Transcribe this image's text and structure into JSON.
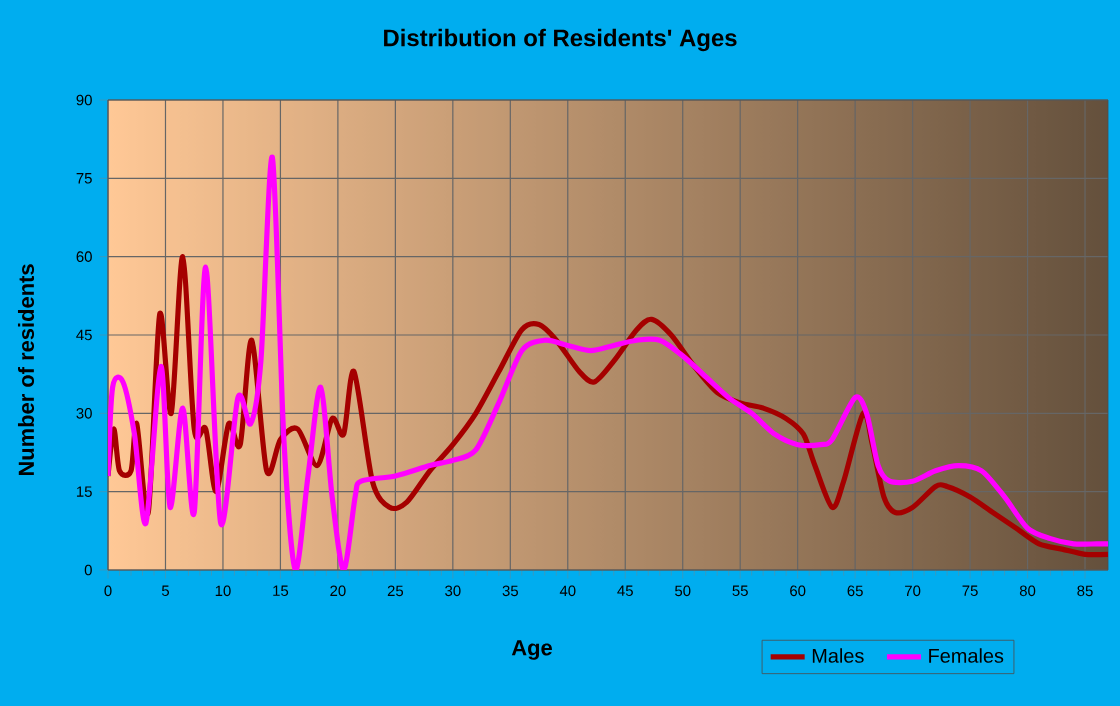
{
  "chart_data": {
    "type": "line",
    "title": "Distribution of Residents' Ages",
    "xlabel": "Age",
    "ylabel": "Number of residents",
    "xlim": [
      0,
      87
    ],
    "ylim": [
      0,
      90
    ],
    "xticks": [
      0,
      5,
      10,
      15,
      20,
      25,
      30,
      35,
      40,
      45,
      50,
      55,
      60,
      65,
      70,
      75,
      80,
      85
    ],
    "yticks": [
      0,
      15,
      30,
      45,
      60,
      75,
      90
    ],
    "grid": true,
    "legend": "bottom right",
    "marker": "none",
    "line_style": "solid",
    "series": [
      {
        "name": "Males",
        "color": "#a50000",
        "x": [
          0,
          0.5,
          1,
          2,
          2.5,
          3.5,
          4.5,
          5.5,
          6.5,
          7.5,
          8.5,
          9.4,
          10.5,
          11.5,
          12.5,
          13.8,
          15,
          16.5,
          18.2,
          19.5,
          20.5,
          21.4,
          23,
          24.5,
          26,
          28,
          30,
          32,
          34,
          36,
          37.5,
          39,
          41,
          42.3,
          44,
          46,
          47.3,
          49,
          51,
          53,
          55,
          57,
          59,
          60.5,
          61.5,
          63,
          64,
          65.7,
          66.5,
          67.5,
          68.5,
          70,
          72,
          73,
          75,
          77,
          79,
          81,
          83,
          85,
          87
        ],
        "values": [
          18,
          27,
          19,
          19,
          28,
          11,
          49,
          30,
          60,
          27,
          27,
          15,
          28,
          24,
          44,
          19,
          25,
          27,
          20,
          29,
          26,
          38,
          17,
          12,
          13,
          19,
          24,
          30,
          38,
          46,
          47,
          44,
          38,
          36,
          40,
          46,
          48,
          45,
          39,
          34,
          32,
          31,
          29,
          26,
          20,
          12,
          17,
          30,
          24,
          14,
          11,
          12,
          16,
          16,
          14,
          11,
          8,
          5,
          4,
          3,
          3
        ]
      },
      {
        "name": "Females",
        "color": "#ff00ff",
        "x": [
          0,
          0.4,
          1.3,
          2.3,
          3.3,
          4.6,
          5.4,
          6.5,
          7.5,
          8.5,
          9.8,
          11.3,
          12.4,
          13.3,
          14.3,
          15.3,
          16.3,
          17.4,
          18.5,
          19.5,
          20.5,
          21.5,
          22,
          25,
          28,
          30,
          32,
          34,
          36,
          38,
          40,
          42,
          44,
          46,
          48,
          50,
          52,
          54,
          56,
          58,
          60,
          62,
          63,
          65,
          66,
          67,
          68,
          70,
          72,
          74,
          76,
          78,
          80,
          82,
          84,
          86,
          87
        ],
        "values": [
          18,
          35,
          36,
          26,
          9,
          39,
          12,
          31,
          11,
          58,
          9,
          33,
          28,
          40,
          79,
          25,
          0,
          18,
          35,
          14,
          0,
          14,
          17,
          18,
          20,
          21,
          23,
          32,
          42,
          44,
          43,
          42,
          43,
          44,
          44,
          41,
          37,
          33,
          30,
          26,
          24,
          24,
          25,
          33,
          30,
          20,
          17,
          17,
          19,
          20,
          19,
          14,
          8,
          6,
          5,
          5,
          5
        ]
      }
    ]
  }
}
